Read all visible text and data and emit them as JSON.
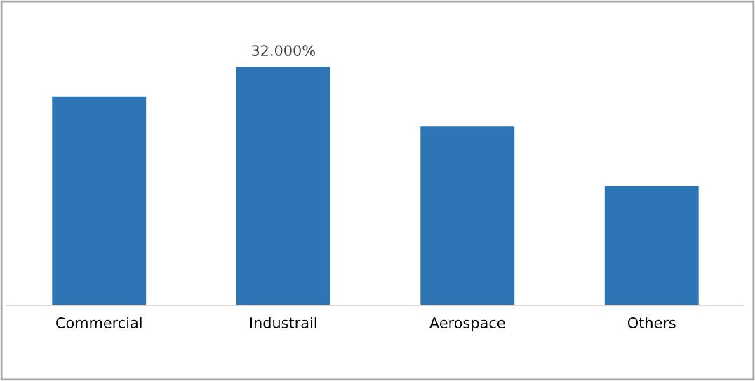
{
  "chart_data": {
    "type": "bar",
    "categories": [
      "Commercial",
      "Industrail",
      "Aerospace",
      "Others"
    ],
    "values": [
      28,
      32,
      24,
      16
    ],
    "value_labels": [
      null,
      "32.000%",
      null,
      null
    ],
    "color": "#2e75b6",
    "grid": false,
    "legend": false
  }
}
